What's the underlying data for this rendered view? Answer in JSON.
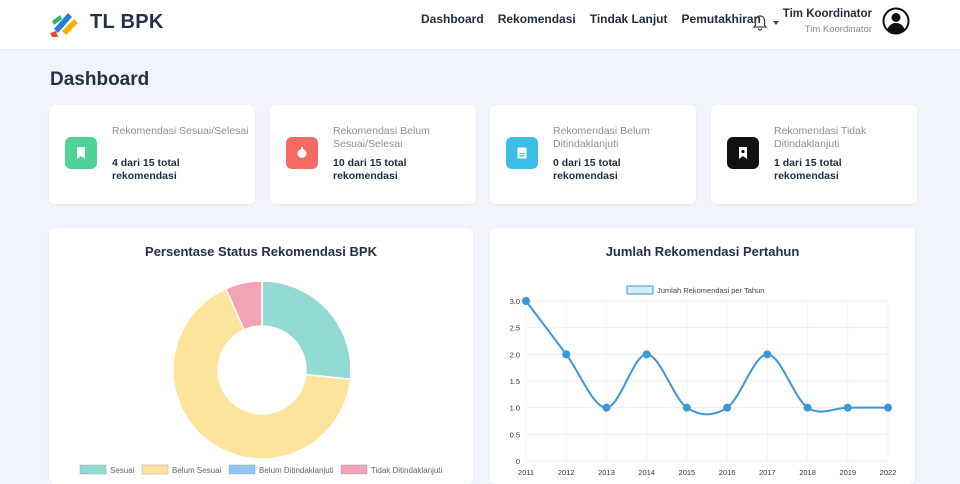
{
  "brand": {
    "name": "TL BPK"
  },
  "nav": [
    {
      "label": "Dashboard"
    },
    {
      "label": "Rekomendasi"
    },
    {
      "label": "Tindak Lanjut"
    },
    {
      "label": "Pemutakhiran"
    }
  ],
  "user": {
    "name": "Tim Koordinator",
    "role": "Tim Koordinator"
  },
  "icons": {
    "notifications": "bell-icon",
    "account": "user-circle-icon"
  },
  "page": {
    "title": "Dashboard"
  },
  "cards": [
    {
      "label": "Rekomendasi Sesuai/Selesai",
      "value": "4 dari 15 total rekomendasi",
      "color": "#4fd39a",
      "icon": "bookmark-icon"
    },
    {
      "label": "Rekomendasi Belum Sesuai/Selesai",
      "value": "10 dari 15 total rekomendasi",
      "color": "#f36b63",
      "icon": "alert-icon"
    },
    {
      "label": "Rekomendasi Belum Ditindaklanjuti",
      "value": "0 dari 15 total rekomendasi",
      "color": "#3bbde6",
      "icon": "document-icon"
    },
    {
      "label": "Rekomendasi Tidak Ditindaklanjuti",
      "value": "1 dari 15 total rekomendasi",
      "color": "#111111",
      "icon": "bookmark-star-icon"
    }
  ],
  "chart_data": [
    {
      "type": "pie",
      "title": "Persentase Status Rekomendasi BPK",
      "categories": [
        "Sesuai",
        "Belum Sesuai",
        "Belum Ditindaklanjuti",
        "Tidak Ditindaklanjuti"
      ],
      "values": [
        4,
        10,
        0,
        1
      ],
      "colors": [
        "#93d9d4",
        "#fde49c",
        "#8fc6f5",
        "#f4a3b6"
      ],
      "legend": "bottom"
    },
    {
      "type": "line",
      "title": "Jumlah Rekomendasi Pertahun",
      "series": [
        {
          "name": "Jumlah Rekomendasi per Tahun",
          "values": [
            3,
            2,
            1,
            2,
            1,
            1,
            2,
            1,
            1,
            1
          ]
        }
      ],
      "categories": [
        "2011",
        "2012",
        "2013",
        "2014",
        "2015",
        "2016",
        "2017",
        "2018",
        "2019",
        "2022"
      ],
      "ylim": [
        0,
        3
      ],
      "yticks": [
        "0",
        "0.5",
        "1.0",
        "1.5",
        "2.0",
        "2.5",
        "3.0"
      ],
      "grid": true,
      "legend": "top",
      "color": "#3a98d8"
    }
  ]
}
